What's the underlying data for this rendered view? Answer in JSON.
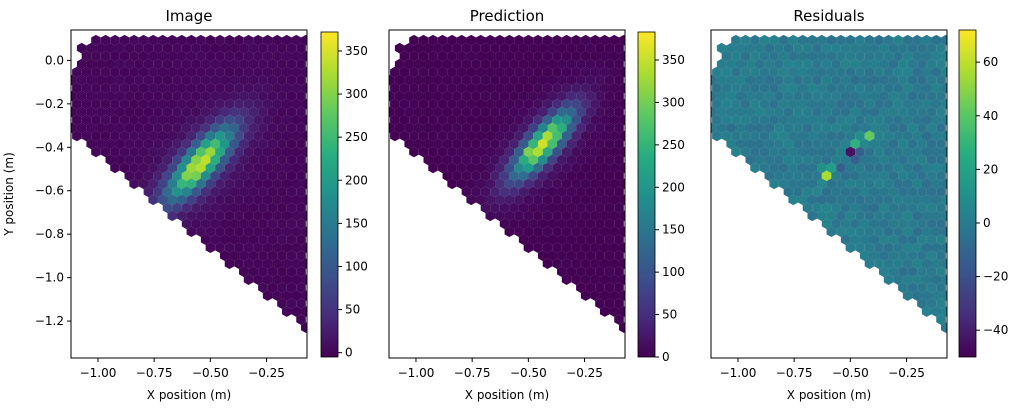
{
  "chart_data": [
    {
      "type": "heatmap",
      "title": "Image",
      "xlabel": "X position (m)",
      "ylabel": "Y position (m)",
      "xlim": [
        -1.12,
        -0.07
      ],
      "ylim": [
        -1.37,
        0.14
      ],
      "x_ticks": [
        -1.0,
        -0.75,
        -0.5,
        -0.25
      ],
      "x_tick_labels": [
        "−1.00",
        "−0.75",
        "−0.50",
        "−0.25"
      ],
      "y_ticks": [
        0.0,
        -0.2,
        -0.4,
        -0.6,
        -0.8,
        -1.0,
        -1.2
      ],
      "y_tick_labels": [
        "0.0",
        "−0.2",
        "−0.4",
        "−0.6",
        "−0.8",
        "−1.0",
        "−1.2"
      ],
      "colormap": "viridis",
      "colorbar_range": [
        -5,
        372
      ],
      "colorbar_ticks": [
        0,
        50,
        100,
        150,
        200,
        250,
        300,
        350
      ],
      "colorbar_tick_labels": [
        "0",
        "50",
        "100",
        "150",
        "200",
        "250",
        "300",
        "350"
      ],
      "peak_value": 372,
      "peak_position": [
        -0.6,
        -0.52
      ],
      "shower_axis_angle_deg": 50,
      "shower_width_m": 0.045,
      "shower_length_m": 0.14
    },
    {
      "type": "heatmap",
      "title": "Prediction",
      "xlabel": "X position (m)",
      "ylabel": "",
      "xlim": [
        -1.12,
        -0.07
      ],
      "ylim": [
        -1.37,
        0.14
      ],
      "x_ticks": [
        -1.0,
        -0.75,
        -0.5,
        -0.25
      ],
      "x_tick_labels": [
        "−1.00",
        "−0.75",
        "−0.50",
        "−0.25"
      ],
      "colormap": "viridis",
      "colorbar_range": [
        0,
        383
      ],
      "colorbar_ticks": [
        0,
        50,
        100,
        150,
        200,
        250,
        300,
        350
      ],
      "colorbar_tick_labels": [
        "0",
        "50",
        "100",
        "150",
        "200",
        "250",
        "300",
        "350"
      ],
      "peak_value": 380,
      "peak_position": [
        -0.49,
        -0.43
      ],
      "shower_axis_angle_deg": 50,
      "shower_width_m": 0.04,
      "shower_length_m": 0.13
    },
    {
      "type": "heatmap",
      "title": "Residuals",
      "xlabel": "X position (m)",
      "ylabel": "",
      "xlim": [
        -1.12,
        -0.07
      ],
      "ylim": [
        -1.37,
        0.14
      ],
      "x_ticks": [
        -1.0,
        -0.75,
        -0.5,
        -0.25
      ],
      "x_tick_labels": [
        "−1.00",
        "−0.75",
        "−0.50",
        "−0.25"
      ],
      "colormap": "viridis",
      "colorbar_range": [
        -50,
        72
      ],
      "colorbar_ticks": [
        60,
        40,
        20,
        0,
        -20,
        -40
      ],
      "colorbar_tick_labels": [
        "60",
        "40",
        "20",
        "0",
        "−20",
        "−40"
      ],
      "notable_values": [
        {
          "x": -0.6,
          "y": -0.52,
          "value": 70
        },
        {
          "x": -0.49,
          "y": -0.43,
          "value": -48
        },
        {
          "x": -0.42,
          "y": -0.35,
          "value": 45
        },
        {
          "x": -0.47,
          "y": -0.38,
          "value": 30
        }
      ]
    }
  ]
}
